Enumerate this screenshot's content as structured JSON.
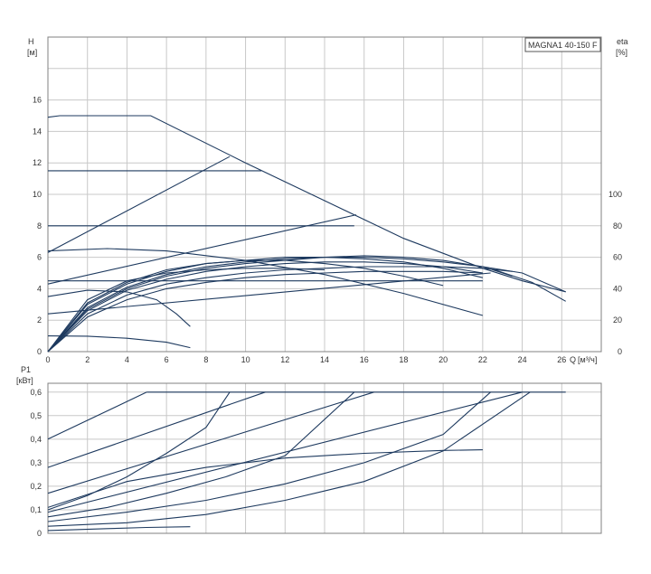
{
  "chart_data": [
    {
      "id": "top",
      "type": "line",
      "title": "MAGNA1 40-150 F",
      "ylabel": "H",
      "yunit": "[м]",
      "y2label": "eta",
      "y2unit": "[%]",
      "xlabel": "Q",
      "xunit": "[м³/ч]",
      "xlim": [
        0,
        28
      ],
      "ylim": [
        0,
        20
      ],
      "y2lim": [
        0,
        200
      ],
      "xticks": [
        "0",
        "2",
        "4",
        "6",
        "8",
        "10",
        "12",
        "14",
        "16",
        "18",
        "20",
        "22",
        "24",
        "26"
      ],
      "yticks": [
        "0",
        "2",
        "4",
        "6",
        "8",
        "10",
        "12",
        "14",
        "16"
      ],
      "y2ticks": [
        "0",
        "20",
        "40",
        "60",
        "80",
        "100"
      ],
      "grid": true,
      "series": [
        {
          "kind": "max-curve",
          "points": [
            [
              0,
              14.9
            ],
            [
              0.6,
              15
            ],
            [
              5.2,
              15
            ],
            [
              10,
              12
            ],
            [
              14,
              9.6
            ],
            [
              18,
              7.2
            ],
            [
              22,
              5.3
            ],
            [
              24,
              4.5
            ],
            [
              26.2,
              3.8
            ]
          ]
        },
        {
          "kind": "constant-pressure",
          "points": [
            [
              0,
              11.5
            ],
            [
              10.8,
              11.5
            ]
          ]
        },
        {
          "kind": "constant-pressure",
          "points": [
            [
              0,
              8.0
            ],
            [
              15.5,
              8.0
            ]
          ]
        },
        {
          "kind": "constant-pressure",
          "points": [
            [
              0,
              4.5
            ],
            [
              22,
              4.5
            ]
          ]
        },
        {
          "kind": "proportional-pressure",
          "points": [
            [
              0,
              6.3
            ],
            [
              9.2,
              12.4
            ]
          ]
        },
        {
          "kind": "proportional-pressure",
          "points": [
            [
              0,
              4.3
            ],
            [
              15.6,
              8.7
            ]
          ]
        },
        {
          "kind": "proportional-pressure",
          "points": [
            [
              0,
              2.4
            ],
            [
              22.4,
              5.0
            ]
          ]
        },
        {
          "kind": "max-curve-continued",
          "points": [
            [
              22.6,
              5.2
            ],
            [
              24.5,
              4.4
            ],
            [
              26.2,
              3.2
            ]
          ]
        },
        {
          "kind": "speed-curve",
          "points": [
            [
              0,
              6.4
            ],
            [
              3,
              6.55
            ],
            [
              6,
              6.4
            ],
            [
              10,
              5.8
            ],
            [
              14,
              4.9
            ],
            [
              18,
              3.7
            ],
            [
              22,
              2.3
            ]
          ]
        },
        {
          "kind": "speed-curve",
          "points": [
            [
              0,
              1.0
            ],
            [
              2,
              0.98
            ],
            [
              4,
              0.85
            ],
            [
              6,
              0.6
            ],
            [
              7.2,
              0.25
            ]
          ]
        },
        {
          "kind": "speed-curve",
          "points": [
            [
              0,
              3.5
            ],
            [
              2,
              3.9
            ],
            [
              4,
              3.8
            ],
            [
              5.5,
              3.3
            ],
            [
              6.5,
              2.4
            ],
            [
              7.2,
              1.6
            ]
          ]
        },
        {
          "kind": "efficiency",
          "points": [
            [
              0,
              0
            ],
            [
              2,
              27
            ],
            [
              4,
              40
            ],
            [
              6,
              48
            ],
            [
              8,
              53
            ],
            [
              10,
              56
            ],
            [
              12,
              58
            ],
            [
              14,
              60
            ],
            [
              16,
              60
            ],
            [
              18,
              59
            ],
            [
              20,
              57
            ],
            [
              22,
              54
            ],
            [
              24,
              50
            ],
            [
              26.2,
              38
            ]
          ]
        },
        {
          "kind": "efficiency",
          "points": [
            [
              0,
              0
            ],
            [
              2,
              28
            ],
            [
              4,
              41
            ],
            [
              6,
              49
            ],
            [
              8,
              54
            ],
            [
              10,
              57
            ],
            [
              12,
              59
            ],
            [
              14,
              60
            ],
            [
              16,
              61
            ],
            [
              18,
              60
            ],
            [
              20,
              58
            ],
            [
              22,
              54
            ],
            [
              23.5,
              48
            ]
          ]
        },
        {
          "kind": "efficiency",
          "points": [
            [
              0,
              0
            ],
            [
              2,
              30
            ],
            [
              4,
              43
            ],
            [
              6,
              51
            ],
            [
              8,
              56
            ],
            [
              10,
              58
            ],
            [
              12,
              60
            ],
            [
              14,
              60
            ],
            [
              16,
              59
            ],
            [
              18,
              57
            ],
            [
              20,
              53
            ],
            [
              22,
              47
            ]
          ]
        },
        {
          "kind": "efficiency",
          "points": [
            [
              0,
              0
            ],
            [
              2,
              26
            ],
            [
              4,
              39
            ],
            [
              6,
              46
            ],
            [
              8,
              51
            ],
            [
              10,
              54
            ],
            [
              12,
              56
            ],
            [
              14,
              57
            ],
            [
              16,
              57
            ],
            [
              18,
              56
            ],
            [
              20,
              54
            ],
            [
              22,
              50
            ]
          ]
        },
        {
          "kind": "efficiency",
          "points": [
            [
              0,
              0
            ],
            [
              2,
              31
            ],
            [
              4,
              44
            ],
            [
              6,
              52
            ],
            [
              8,
              56
            ],
            [
              10,
              58
            ],
            [
              12,
              58
            ],
            [
              14,
              56
            ],
            [
              16,
              53
            ],
            [
              18,
              48
            ],
            [
              20,
              42
            ]
          ]
        },
        {
          "kind": "efficiency",
          "points": [
            [
              0,
              0
            ],
            [
              2,
              24
            ],
            [
              4,
              36
            ],
            [
              6,
              43
            ],
            [
              8,
              47
            ],
            [
              10,
              50
            ],
            [
              12,
              52
            ],
            [
              14,
              53
            ],
            [
              16,
              54
            ],
            [
              18,
              54
            ],
            [
              20,
              54
            ],
            [
              22,
              53
            ],
            [
              23.5,
              51
            ]
          ]
        },
        {
          "kind": "efficiency",
          "points": [
            [
              0,
              0
            ],
            [
              2,
              33
            ],
            [
              4,
              45
            ],
            [
              6,
              50
            ],
            [
              8,
              52
            ],
            [
              10,
              53
            ],
            [
              12,
              53
            ],
            [
              14,
              52
            ]
          ]
        },
        {
          "kind": "efficiency",
          "points": [
            [
              0,
              0
            ],
            [
              2,
              22
            ],
            [
              4,
              33
            ],
            [
              6,
              40
            ],
            [
              8,
              44
            ],
            [
              10,
              47
            ],
            [
              12,
              49
            ],
            [
              14,
              50
            ],
            [
              16,
              51
            ],
            [
              18,
              51
            ],
            [
              20,
              51
            ],
            [
              22,
              50
            ]
          ]
        }
      ]
    },
    {
      "id": "bottom",
      "type": "line",
      "ylabel": "P1",
      "yunit": "[кВт]",
      "xlim": [
        0,
        28
      ],
      "ylim": [
        0,
        0.6375
      ],
      "yticks": [
        "0",
        "0,1",
        "0,2",
        "0,3",
        "0,4",
        "0,5",
        "0,6"
      ],
      "grid": true,
      "series": [
        {
          "kind": "power-limit",
          "points": [
            [
              5,
              0.6
            ],
            [
              26.2,
              0.6
            ]
          ]
        },
        {
          "kind": "constant-pressure",
          "points": [
            [
              0,
              0.4
            ],
            [
              5,
              0.6
            ]
          ]
        },
        {
          "kind": "constant-pressure",
          "points": [
            [
              0,
              0.28
            ],
            [
              11,
              0.6
            ]
          ]
        },
        {
          "kind": "constant-pressure",
          "points": [
            [
              0,
              0.17
            ],
            [
              16.5,
              0.6
            ]
          ]
        },
        {
          "kind": "constant-pressure",
          "points": [
            [
              0,
              0.09
            ],
            [
              24,
              0.6
            ]
          ]
        },
        {
          "kind": "proportional-pressure",
          "points": [
            [
              0,
              0.1
            ],
            [
              2,
              0.16
            ],
            [
              4,
              0.24
            ],
            [
              6,
              0.34
            ],
            [
              8,
              0.45
            ],
            [
              9.2,
              0.6
            ]
          ]
        },
        {
          "kind": "proportional-pressure",
          "points": [
            [
              0,
              0.07
            ],
            [
              3,
              0.11
            ],
            [
              6,
              0.17
            ],
            [
              9,
              0.24
            ],
            [
              12,
              0.33
            ],
            [
              15.5,
              0.6
            ]
          ]
        },
        {
          "kind": "proportional-pressure",
          "points": [
            [
              0,
              0.05
            ],
            [
              4,
              0.09
            ],
            [
              8,
              0.14
            ],
            [
              12,
              0.21
            ],
            [
              16,
              0.3
            ],
            [
              20,
              0.42
            ],
            [
              22.4,
              0.6
            ]
          ]
        },
        {
          "kind": "speed-curve",
          "points": [
            [
              0,
              0.11
            ],
            [
              4,
              0.22
            ],
            [
              8,
              0.28
            ],
            [
              12,
              0.32
            ],
            [
              16,
              0.34
            ],
            [
              20,
              0.352
            ],
            [
              22,
              0.355
            ]
          ]
        },
        {
          "kind": "speed-curve",
          "points": [
            [
              0,
              0.012
            ],
            [
              3,
              0.02
            ],
            [
              5,
              0.025
            ],
            [
              7.2,
              0.028
            ]
          ]
        },
        {
          "kind": "speed-curve",
          "points": [
            [
              0,
              0.03
            ],
            [
              4,
              0.045
            ],
            [
              8,
              0.08
            ],
            [
              12,
              0.14
            ],
            [
              16,
              0.22
            ],
            [
              20,
              0.35
            ],
            [
              24.4,
              0.6
            ]
          ]
        }
      ]
    }
  ]
}
